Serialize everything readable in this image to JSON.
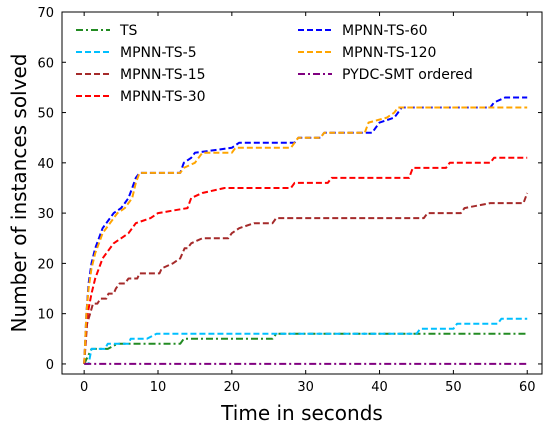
{
  "chart_data": {
    "type": "line",
    "title": "",
    "xlabel": "Time in seconds",
    "ylabel": "Number of instances solved",
    "xlim": [
      -3,
      62
    ],
    "ylim": [
      -2,
      70
    ],
    "xticks": [
      0,
      10,
      20,
      30,
      40,
      50,
      60
    ],
    "yticks": [
      0,
      10,
      20,
      30,
      40,
      50,
      60,
      70
    ],
    "grid": false,
    "legend_placement": "top-left",
    "series": [
      {
        "name": "TS",
        "color": "#228b22",
        "dash": "dashdot",
        "points": [
          [
            0,
            0
          ],
          [
            1,
            3
          ],
          [
            3,
            3
          ],
          [
            3.2,
            3
          ],
          [
            4.5,
            4
          ],
          [
            10,
            4
          ],
          [
            10.5,
            4
          ],
          [
            11,
            4
          ],
          [
            13,
            4
          ],
          [
            13.5,
            5
          ],
          [
            14,
            5
          ],
          [
            25.5,
            5
          ],
          [
            26,
            6
          ],
          [
            60,
            6
          ]
        ]
      },
      {
        "name": "MPNN-TS-5",
        "color": "#00bfff",
        "dash": "dashed",
        "points": [
          [
            0,
            0
          ],
          [
            0.6,
            0
          ],
          [
            1,
            3
          ],
          [
            2.8,
            3
          ],
          [
            3.2,
            4
          ],
          [
            6,
            4
          ],
          [
            6.3,
            5
          ],
          [
            8,
            5
          ],
          [
            8.5,
            5
          ],
          [
            9.8,
            6
          ],
          [
            20,
            6
          ],
          [
            45,
            6
          ],
          [
            45.5,
            7
          ],
          [
            50,
            7
          ],
          [
            50.5,
            8
          ],
          [
            56,
            8
          ],
          [
            56.5,
            9
          ],
          [
            60,
            9
          ]
        ]
      },
      {
        "name": "MPNN-TS-15",
        "color": "#a52a2a",
        "dash": "dashed",
        "points": [
          [
            0,
            0
          ],
          [
            0.4,
            8
          ],
          [
            0.8,
            10
          ],
          [
            1.2,
            12
          ],
          [
            1.8,
            12
          ],
          [
            2.2,
            13
          ],
          [
            3,
            13
          ],
          [
            3.3,
            14
          ],
          [
            4,
            14
          ],
          [
            4.3,
            15
          ],
          [
            4.8,
            16
          ],
          [
            5.5,
            16
          ],
          [
            6,
            17
          ],
          [
            7.2,
            17
          ],
          [
            7.5,
            18
          ],
          [
            10.2,
            18
          ],
          [
            10.5,
            19
          ],
          [
            12,
            20
          ],
          [
            13,
            21
          ],
          [
            13.6,
            23
          ],
          [
            14,
            23
          ],
          [
            14.5,
            24
          ],
          [
            16,
            25
          ],
          [
            19.5,
            25
          ],
          [
            20,
            26
          ],
          [
            21,
            27
          ],
          [
            23,
            28
          ],
          [
            25.5,
            28
          ],
          [
            26,
            29
          ],
          [
            46,
            29
          ],
          [
            46.5,
            30
          ],
          [
            51,
            30
          ],
          [
            51.5,
            31
          ],
          [
            55,
            32
          ],
          [
            59.5,
            32
          ],
          [
            60,
            34
          ]
        ]
      },
      {
        "name": "MPNN-TS-30",
        "color": "#ff0000",
        "dash": "dashed",
        "points": [
          [
            0,
            0
          ],
          [
            0.3,
            8
          ],
          [
            0.6,
            11
          ],
          [
            1,
            14
          ],
          [
            1.5,
            17
          ],
          [
            2,
            19
          ],
          [
            2.5,
            21
          ],
          [
            3,
            22
          ],
          [
            3.5,
            23
          ],
          [
            4,
            24
          ],
          [
            5,
            25
          ],
          [
            6,
            26
          ],
          [
            6.5,
            27
          ],
          [
            7,
            28
          ],
          [
            9,
            29
          ],
          [
            10,
            30
          ],
          [
            14,
            31
          ],
          [
            14.5,
            33
          ],
          [
            16,
            34
          ],
          [
            19,
            35
          ],
          [
            28,
            35
          ],
          [
            28.5,
            36
          ],
          [
            33,
            36
          ],
          [
            33.5,
            37
          ],
          [
            44,
            37
          ],
          [
            44.5,
            39
          ],
          [
            49,
            39
          ],
          [
            49.5,
            40
          ],
          [
            55,
            40
          ],
          [
            55.5,
            41
          ],
          [
            60,
            41
          ]
        ]
      },
      {
        "name": "MPNN-TS-60",
        "color": "#0000ff",
        "dash": "dashed",
        "points": [
          [
            0,
            0
          ],
          [
            0.3,
            10
          ],
          [
            0.6,
            16
          ],
          [
            1,
            20
          ],
          [
            1.5,
            23
          ],
          [
            2,
            25
          ],
          [
            2.5,
            27
          ],
          [
            3,
            28
          ],
          [
            4,
            30
          ],
          [
            5,
            31
          ],
          [
            5.5,
            32
          ],
          [
            6,
            33
          ],
          [
            6.5,
            35
          ],
          [
            7,
            37
          ],
          [
            7.5,
            38
          ],
          [
            13,
            38
          ],
          [
            13.5,
            40
          ],
          [
            14.5,
            41
          ],
          [
            15,
            42
          ],
          [
            20,
            43
          ],
          [
            21,
            44
          ],
          [
            28.5,
            44
          ],
          [
            29,
            45
          ],
          [
            32,
            45
          ],
          [
            32.5,
            46
          ],
          [
            39,
            46
          ],
          [
            39.5,
            47
          ],
          [
            40,
            48
          ],
          [
            42,
            49
          ],
          [
            42.5,
            50
          ],
          [
            43,
            51
          ],
          [
            55,
            51
          ],
          [
            55.5,
            52
          ],
          [
            57,
            53
          ],
          [
            60,
            53
          ]
        ]
      },
      {
        "name": "MPNN-TS-120",
        "color": "#ffa500",
        "dash": "dashed",
        "points": [
          [
            0,
            0
          ],
          [
            0.3,
            10
          ],
          [
            0.6,
            15
          ],
          [
            1,
            19
          ],
          [
            1.5,
            22
          ],
          [
            2,
            24
          ],
          [
            2.5,
            26
          ],
          [
            3,
            27
          ],
          [
            3.5,
            28
          ],
          [
            4,
            29
          ],
          [
            4.5,
            30
          ],
          [
            5.5,
            31
          ],
          [
            6.5,
            33
          ],
          [
            7,
            36
          ],
          [
            7.5,
            38
          ],
          [
            13,
            38
          ],
          [
            13.5,
            39
          ],
          [
            15,
            40
          ],
          [
            15.5,
            41
          ],
          [
            16,
            42
          ],
          [
            20,
            42
          ],
          [
            20.5,
            43
          ],
          [
            28,
            43
          ],
          [
            28.5,
            44
          ],
          [
            29,
            45
          ],
          [
            32,
            45
          ],
          [
            32.5,
            46
          ],
          [
            38,
            46
          ],
          [
            38.5,
            48
          ],
          [
            41,
            49
          ],
          [
            42,
            50
          ],
          [
            42.5,
            51
          ],
          [
            60,
            51
          ]
        ]
      },
      {
        "name": "PYDC-SMT ordered",
        "color": "#800080",
        "dash": "dashdot",
        "points": [
          [
            0,
            0
          ],
          [
            60,
            0
          ]
        ]
      }
    ]
  }
}
